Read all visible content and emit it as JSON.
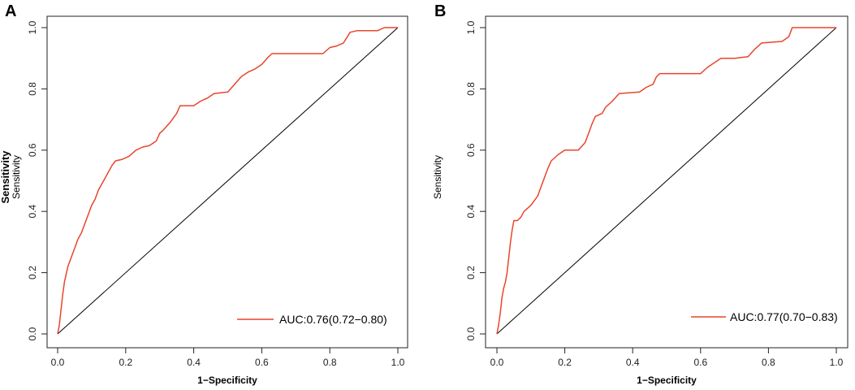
{
  "colors": {
    "roc": "#e8452c",
    "diagonal": "#000000",
    "frame": "#222222"
  },
  "chart_data": [
    {
      "type": "line",
      "panel_label": "A",
      "xlabel": "1−Specificity",
      "ylabel": "Sensitivity",
      "ylabel_extra": "Sensitivity",
      "xlim": [
        0,
        1
      ],
      "ylim": [
        0,
        1
      ],
      "x_ticks": [
        "0.0",
        "0.2",
        "0.4",
        "0.6",
        "0.8",
        "1.0"
      ],
      "y_ticks": [
        "0.0",
        "0.2",
        "0.4",
        "0.6",
        "0.8",
        "1.0"
      ],
      "legend_label": "AUC:0.76(0.72−0.80)",
      "legend_position": "bottom-right",
      "reference_line": [
        [
          0,
          0
        ],
        [
          1,
          1
        ]
      ],
      "series": [
        {
          "name": "ROC",
          "points": [
            [
              0,
              0
            ],
            [
              0.005,
              0.03
            ],
            [
              0.01,
              0.08
            ],
            [
              0.015,
              0.13
            ],
            [
              0.02,
              0.17
            ],
            [
              0.03,
              0.22
            ],
            [
              0.04,
              0.25
            ],
            [
              0.05,
              0.28
            ],
            [
              0.06,
              0.31
            ],
            [
              0.07,
              0.33
            ],
            [
              0.08,
              0.36
            ],
            [
              0.09,
              0.39
            ],
            [
              0.1,
              0.42
            ],
            [
              0.11,
              0.44
            ],
            [
              0.12,
              0.47
            ],
            [
              0.13,
              0.49
            ],
            [
              0.14,
              0.51
            ],
            [
              0.15,
              0.53
            ],
            [
              0.16,
              0.55
            ],
            [
              0.17,
              0.565
            ],
            [
              0.19,
              0.57
            ],
            [
              0.21,
              0.58
            ],
            [
              0.23,
              0.6
            ],
            [
              0.25,
              0.61
            ],
            [
              0.27,
              0.615
            ],
            [
              0.29,
              0.63
            ],
            [
              0.3,
              0.655
            ],
            [
              0.31,
              0.665
            ],
            [
              0.33,
              0.69
            ],
            [
              0.35,
              0.72
            ],
            [
              0.36,
              0.745
            ],
            [
              0.4,
              0.745
            ],
            [
              0.42,
              0.76
            ],
            [
              0.44,
              0.77
            ],
            [
              0.46,
              0.785
            ],
            [
              0.5,
              0.79
            ],
            [
              0.52,
              0.815
            ],
            [
              0.54,
              0.84
            ],
            [
              0.56,
              0.855
            ],
            [
              0.58,
              0.865
            ],
            [
              0.6,
              0.88
            ],
            [
              0.62,
              0.905
            ],
            [
              0.63,
              0.915
            ],
            [
              0.66,
              0.915
            ],
            [
              0.72,
              0.915
            ],
            [
              0.78,
              0.915
            ],
            [
              0.8,
              0.935
            ],
            [
              0.82,
              0.94
            ],
            [
              0.84,
              0.95
            ],
            [
              0.86,
              0.985
            ],
            [
              0.88,
              0.99
            ],
            [
              0.94,
              0.99
            ],
            [
              0.96,
              1.0
            ],
            [
              1.0,
              1.0
            ]
          ]
        }
      ]
    },
    {
      "type": "line",
      "panel_label": "B",
      "xlabel": "1−Specificity",
      "ylabel": "Sensitivity",
      "xlim": [
        0,
        1
      ],
      "ylim": [
        0,
        1
      ],
      "x_ticks": [
        "0.0",
        "0.2",
        "0.4",
        "0.6",
        "0.8",
        "1.0"
      ],
      "y_ticks": [
        "0.0",
        "0.2",
        "0.4",
        "0.6",
        "0.8",
        "1.0"
      ],
      "legend_label": "AUC:0.77(0.70−0.83)",
      "legend_position": "bottom-right",
      "reference_line": [
        [
          0,
          0
        ],
        [
          1,
          1
        ]
      ],
      "series": [
        {
          "name": "ROC",
          "points": [
            [
              0,
              0
            ],
            [
              0.005,
              0.03
            ],
            [
              0.01,
              0.07
            ],
            [
              0.015,
              0.12
            ],
            [
              0.02,
              0.15
            ],
            [
              0.025,
              0.17
            ],
            [
              0.03,
              0.2
            ],
            [
              0.035,
              0.25
            ],
            [
              0.04,
              0.3
            ],
            [
              0.045,
              0.34
            ],
            [
              0.05,
              0.37
            ],
            [
              0.06,
              0.37
            ],
            [
              0.07,
              0.38
            ],
            [
              0.08,
              0.4
            ],
            [
              0.1,
              0.42
            ],
            [
              0.12,
              0.45
            ],
            [
              0.13,
              0.48
            ],
            [
              0.14,
              0.51
            ],
            [
              0.15,
              0.54
            ],
            [
              0.16,
              0.565
            ],
            [
              0.18,
              0.585
            ],
            [
              0.2,
              0.6
            ],
            [
              0.24,
              0.6
            ],
            [
              0.26,
              0.625
            ],
            [
              0.27,
              0.655
            ],
            [
              0.28,
              0.685
            ],
            [
              0.29,
              0.71
            ],
            [
              0.31,
              0.72
            ],
            [
              0.32,
              0.74
            ],
            [
              0.34,
              0.76
            ],
            [
              0.36,
              0.785
            ],
            [
              0.42,
              0.79
            ],
            [
              0.44,
              0.805
            ],
            [
              0.46,
              0.815
            ],
            [
              0.47,
              0.84
            ],
            [
              0.48,
              0.85
            ],
            [
              0.6,
              0.85
            ],
            [
              0.62,
              0.87
            ],
            [
              0.64,
              0.885
            ],
            [
              0.66,
              0.9
            ],
            [
              0.7,
              0.9
            ],
            [
              0.74,
              0.905
            ],
            [
              0.76,
              0.93
            ],
            [
              0.78,
              0.95
            ],
            [
              0.84,
              0.955
            ],
            [
              0.86,
              0.97
            ],
            [
              0.87,
              1.0
            ],
            [
              1.0,
              1.0
            ]
          ]
        }
      ]
    }
  ]
}
